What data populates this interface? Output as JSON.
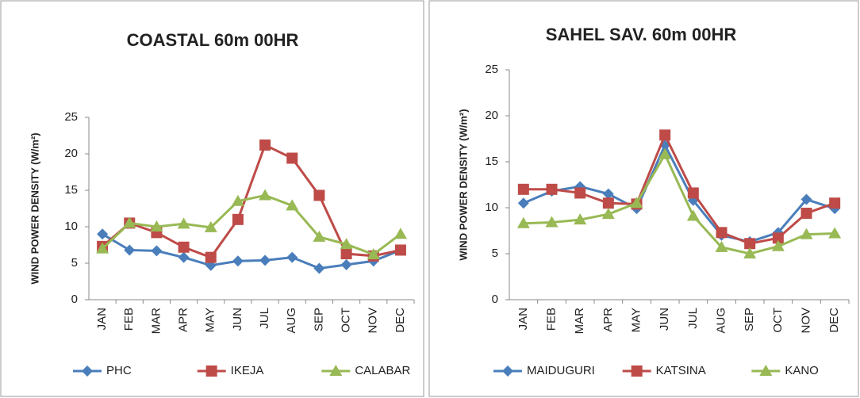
{
  "chart_data": [
    {
      "type": "line",
      "title": "COASTAL 60m 00HR",
      "y_label": "WIND POWER DENSITY (W/m²)",
      "categories": [
        "JAN",
        "FEB",
        "MAR",
        "APR",
        "MAY",
        "JUN",
        "JUL",
        "AUG",
        "SEP",
        "OCT",
        "NOV",
        "DEC"
      ],
      "ylim": [
        0,
        25
      ],
      "yticks": [
        0,
        5,
        10,
        15,
        20,
        25
      ],
      "grid": false,
      "legend": "bottom",
      "series": [
        {
          "name": "PHC",
          "color": "#4a7ebb",
          "marker": "diamond",
          "values": [
            9.0,
            6.8,
            6.7,
            5.8,
            4.7,
            5.3,
            5.4,
            5.8,
            4.3,
            4.8,
            5.3,
            6.8
          ]
        },
        {
          "name": "IKEJA",
          "color": "#be4b48",
          "marker": "square",
          "values": [
            7.3,
            10.5,
            9.2,
            7.2,
            5.8,
            11.0,
            21.2,
            19.4,
            14.3,
            6.3,
            6.0,
            6.8
          ]
        },
        {
          "name": "CALABAR",
          "color": "#98b954",
          "marker": "triangle",
          "values": [
            7.0,
            10.5,
            10.0,
            10.4,
            9.9,
            13.5,
            14.3,
            12.9,
            8.6,
            7.6,
            6.2,
            9.0
          ]
        }
      ]
    },
    {
      "type": "line",
      "title": "SAHEL SAV. 60m 00HR",
      "y_label": "WIND POWER DENSITY (W/m²)",
      "categories": [
        "JAN",
        "FEB",
        "MAR",
        "APR",
        "MAY",
        "JUN",
        "JUL",
        "AUG",
        "SEP",
        "OCT",
        "NOV",
        "DEC"
      ],
      "ylim": [
        0,
        25
      ],
      "yticks": [
        0,
        5,
        10,
        15,
        20,
        25
      ],
      "grid": false,
      "legend": "bottom",
      "series": [
        {
          "name": "MAIDUGURI",
          "color": "#4a7ebb",
          "marker": "diamond",
          "values": [
            10.5,
            11.8,
            12.3,
            11.5,
            9.9,
            16.8,
            10.8,
            7.0,
            6.3,
            7.3,
            10.9,
            9.9
          ]
        },
        {
          "name": "KATSINA",
          "color": "#be4b48",
          "marker": "square",
          "values": [
            12.0,
            12.0,
            11.6,
            10.5,
            10.4,
            17.9,
            11.6,
            7.3,
            6.1,
            6.7,
            9.4,
            10.5
          ]
        },
        {
          "name": "KANO",
          "color": "#98b954",
          "marker": "triangle",
          "values": [
            8.3,
            8.4,
            8.7,
            9.3,
            10.5,
            15.8,
            9.1,
            5.7,
            5.0,
            5.8,
            7.1,
            7.2
          ]
        }
      ]
    }
  ]
}
